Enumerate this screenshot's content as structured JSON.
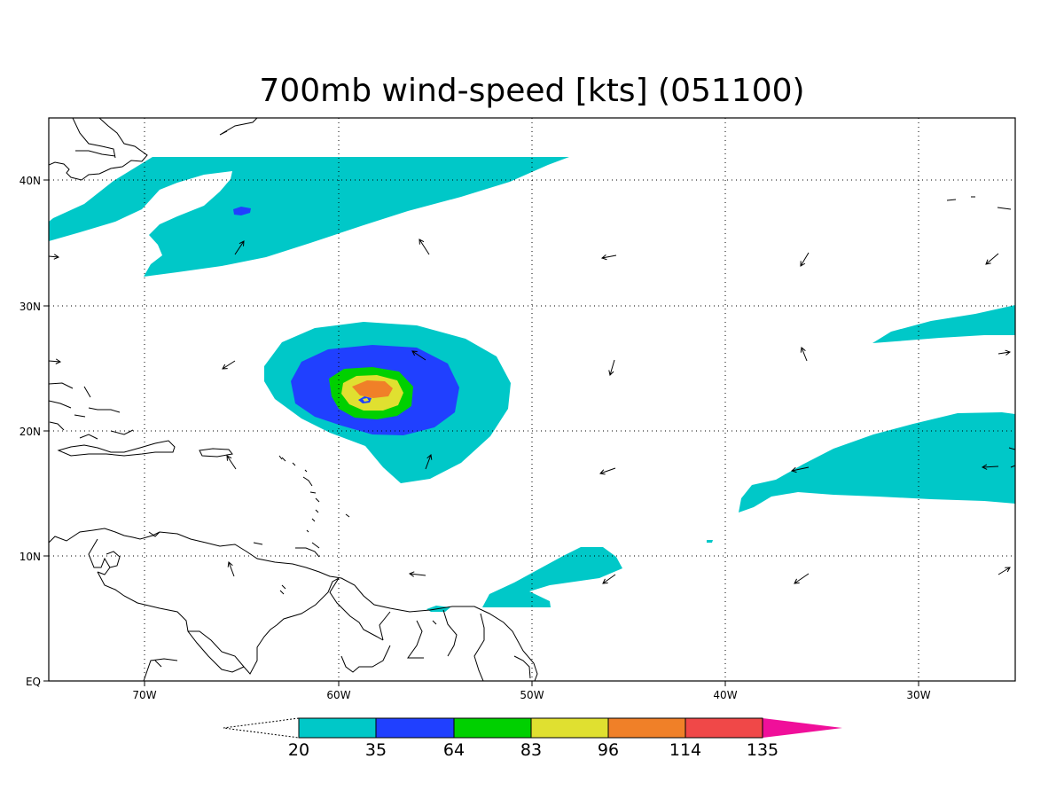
{
  "title": "700mb wind-speed [kts] (051100)",
  "x_tick_labels": [
    "70W",
    "60W",
    "50W",
    "40W",
    "30W"
  ],
  "y_tick_labels": [
    "EQ",
    "10N",
    "20N",
    "30N",
    "40N"
  ],
  "colorbar": {
    "labels": [
      "20",
      "35",
      "64",
      "83",
      "96",
      "114",
      "135"
    ],
    "colors": [
      "#00c8c8",
      "#2040ff",
      "#00d000",
      "#e0e030",
      "#f08028",
      "#f04848",
      "#f00f9a"
    ]
  },
  "map_extent": {
    "lon": [
      -75,
      -25
    ],
    "lat": [
      0,
      45
    ]
  },
  "contour_levels_kts": [
    20,
    35,
    64,
    83,
    96,
    114,
    135
  ]
}
